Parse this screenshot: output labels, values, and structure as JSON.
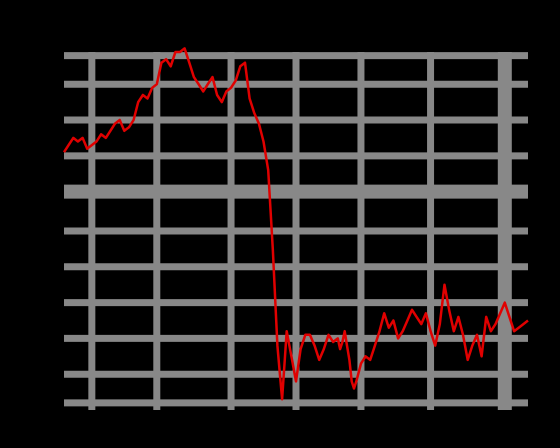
{
  "colors": {
    "background": "#000000",
    "grid": "#888888",
    "line": "#e00000"
  },
  "chart_data": {
    "type": "line",
    "title": "",
    "xlabel": "",
    "ylabel": "",
    "grid": true,
    "axis_labels_visible": false,
    "xlim": [
      0,
      100
    ],
    "ylim": [
      0,
      100
    ],
    "x_grid": [
      6,
      20,
      36,
      50,
      64,
      79,
      95
    ],
    "y_grid": [
      2,
      10,
      20,
      30,
      40,
      50,
      61,
      71,
      81,
      91,
      99
    ],
    "series": [
      {
        "color": "#e00000",
        "x": [
          0,
          1,
          2,
          3,
          4,
          5,
          6,
          7,
          8,
          9,
          10,
          11,
          12,
          13,
          14,
          15,
          16,
          17,
          18,
          19,
          20,
          21,
          22,
          23,
          24,
          25,
          26,
          27,
          28,
          29,
          30,
          31,
          32,
          33,
          34,
          35,
          36,
          37,
          38,
          39,
          40,
          41,
          42,
          43,
          44,
          45,
          46,
          47,
          48,
          49,
          50,
          51,
          52,
          53,
          54,
          55,
          56,
          57,
          58,
          59,
          59.5,
          60,
          60.5,
          61,
          61.5,
          62,
          62.5,
          63,
          64,
          65,
          66,
          67,
          68,
          69,
          70,
          71,
          72,
          73,
          74,
          75,
          76,
          77,
          78,
          79,
          80,
          81,
          82,
          83,
          84,
          85,
          86,
          87,
          88,
          89,
          90,
          91,
          92,
          93,
          94,
          95,
          96,
          97,
          98,
          99,
          100
        ],
        "y": [
          72,
          74,
          76,
          75,
          76,
          73,
          74,
          75,
          77,
          76,
          78,
          80,
          81,
          78,
          79,
          81,
          86,
          88,
          87,
          90,
          91,
          97,
          98,
          96,
          100,
          100,
          101,
          97,
          93,
          91,
          89,
          91,
          93,
          88,
          86,
          89,
          90,
          92,
          96,
          97,
          87,
          83,
          80,
          75,
          67,
          45,
          18,
          3,
          22,
          15,
          8,
          17,
          21,
          21,
          18,
          14,
          17,
          21,
          19,
          20,
          17,
          19,
          22,
          18,
          14,
          8,
          6,
          8,
          13,
          15,
          14,
          18,
          22,
          27,
          23,
          25,
          20,
          22,
          25,
          28,
          26,
          24,
          27,
          22,
          18,
          24,
          35,
          28,
          22,
          26,
          21,
          14,
          18,
          21,
          15,
          26,
          22,
          24,
          27,
          30,
          26,
          22,
          23,
          24,
          25
        ],
        "x_dense": [
          0,
          0.5,
          1,
          1.5,
          2,
          2.5,
          3,
          3.5,
          4,
          4.5,
          5,
          5.5,
          6,
          6.5,
          7,
          7.5,
          8,
          8.5,
          9,
          9.5,
          10,
          10.5,
          11,
          11.5,
          12,
          12.5,
          13,
          13.5,
          14,
          14.5,
          15,
          15.5,
          16,
          16.5,
          17,
          17.5,
          18,
          18.5,
          19,
          19.5,
          20,
          20.5,
          21,
          21.5,
          22,
          22.5,
          23,
          23.5,
          24,
          24.5,
          25,
          25.5,
          26,
          26.5,
          27,
          27.5,
          28,
          28.5,
          29,
          29.5,
          30,
          30.5,
          31,
          31.5,
          32,
          32.5,
          33,
          33.5,
          34,
          34.5,
          35,
          35.5,
          36,
          36.5,
          37,
          37.5,
          38,
          38.5,
          39,
          39.5,
          40,
          40.5,
          41,
          41.5,
          42,
          42.5,
          43,
          43.5,
          44,
          44.5,
          45,
          45.5,
          46,
          46.5,
          47,
          47.5,
          48,
          48.5,
          49,
          49.5,
          50,
          50.5,
          51,
          51.5,
          52,
          52.5,
          53,
          53.5,
          54,
          54.5,
          55,
          55.5,
          56,
          56.5,
          57,
          57.5,
          58,
          58.5,
          59,
          59.5,
          60,
          60.5,
          61,
          61.5,
          62,
          62.5,
          63,
          63.5,
          64,
          64.5,
          65,
          65.5,
          66,
          66.5,
          67,
          67.5,
          68,
          68.5,
          69,
          69.5,
          70,
          70.5,
          71,
          71.5,
          72,
          72.5,
          73,
          73.5,
          74,
          74.5,
          75,
          75.5,
          76,
          76.5,
          77,
          77.5,
          78,
          78.5,
          79,
          79.5,
          80,
          80.5,
          81,
          81.5,
          82,
          82.5,
          83,
          83.5,
          84,
          84.5,
          85,
          85.5,
          86,
          86.5,
          87,
          87.5,
          88,
          88.5,
          89,
          89.5,
          90,
          90.5,
          91,
          91.5,
          92,
          92.5,
          93,
          93.5,
          94,
          94.5,
          95,
          95.5,
          96,
          96.5,
          97,
          97.5,
          98,
          98.5,
          99,
          99.5,
          100
        ]
      }
    ]
  }
}
